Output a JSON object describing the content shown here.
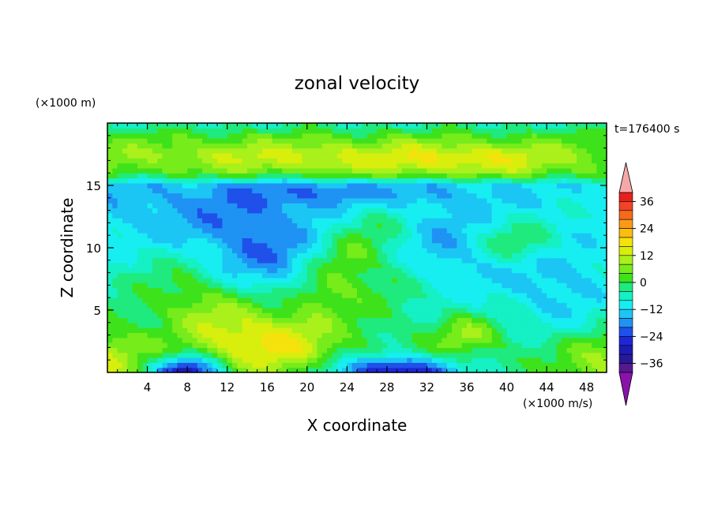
{
  "chart_data": {
    "type": "heatmap",
    "title": "zonal velocity",
    "xlabel": "X coordinate",
    "ylabel": "Z coordinate",
    "x_unit_label": "(×1000 m/s)",
    "y_unit_label": "(×1000 m)",
    "time_label": "t=176400 s",
    "xlim": [
      0,
      50
    ],
    "ylim": [
      0,
      20
    ],
    "x_ticks": [
      4,
      8,
      12,
      16,
      20,
      24,
      28,
      32,
      36,
      40,
      44,
      48
    ],
    "y_ticks": [
      5,
      10,
      15
    ],
    "colorbar": {
      "min": -40,
      "max": 40,
      "tick_values": [
        36,
        24,
        12,
        0,
        -12,
        -24,
        -36
      ],
      "tick_labels": [
        "36",
        "24",
        "12",
        "0",
        "−12",
        "−24",
        "−36"
      ],
      "levels": [
        {
          "from": 36,
          "to": 40,
          "color": "#e8201c"
        },
        {
          "from": 32,
          "to": 36,
          "color": "#f04426"
        },
        {
          "from": 28,
          "to": 32,
          "color": "#f66a1e"
        },
        {
          "from": 24,
          "to": 28,
          "color": "#fa9a16"
        },
        {
          "from": 20,
          "to": 24,
          "color": "#fbbd10"
        },
        {
          "from": 16,
          "to": 20,
          "color": "#f5e20d"
        },
        {
          "from": 12,
          "to": 16,
          "color": "#d8ee0c"
        },
        {
          "from": 8,
          "to": 12,
          "color": "#aaf01a"
        },
        {
          "from": 4,
          "to": 8,
          "color": "#76ec1a"
        },
        {
          "from": 0,
          "to": 4,
          "color": "#3ee21a"
        },
        {
          "from": -4,
          "to": 0,
          "color": "#1fea7e"
        },
        {
          "from": -8,
          "to": -4,
          "color": "#15f0c4"
        },
        {
          "from": -12,
          "to": -8,
          "color": "#17eef2"
        },
        {
          "from": -16,
          "to": -12,
          "color": "#1cc6f4"
        },
        {
          "from": -20,
          "to": -16,
          "color": "#1f92f4"
        },
        {
          "from": -24,
          "to": -20,
          "color": "#2050ea"
        },
        {
          "from": -28,
          "to": -24,
          "color": "#1c28d8"
        },
        {
          "from": -32,
          "to": -28,
          "color": "#1c1cb0"
        },
        {
          "from": -36,
          "to": -32,
          "color": "#28189a"
        },
        {
          "from": -40,
          "to": -36,
          "color": "#56188e"
        }
      ],
      "over_color": "#f6a8a8",
      "under_color": "#8a12aa"
    },
    "features": [
      {
        "x": 24,
        "z": 8.5,
        "amp": 14,
        "sx": 5.5,
        "sz": 2.2,
        "rot": -0.75
      },
      {
        "x": 29,
        "z": 7.5,
        "amp": 6,
        "sx": 2.5,
        "sz": 1.5,
        "rot": -0.6
      },
      {
        "x": 11,
        "z": 5.0,
        "amp": 14,
        "sx": 5.0,
        "sz": 2.5,
        "rot": 0.3
      },
      {
        "x": 16,
        "z": 2.2,
        "amp": 10,
        "sx": 4.0,
        "sz": 1.6,
        "rot": 0.0
      },
      {
        "x": 8,
        "z": 0.0,
        "amp": -30,
        "sx": 2.2,
        "sz": 0.9,
        "rot": 0.0
      },
      {
        "x": 29,
        "z": 0.0,
        "amp": -30,
        "sx": 3.8,
        "sz": 0.9,
        "rot": 0.0
      },
      {
        "x": 36,
        "z": 3.2,
        "amp": 10,
        "sx": 2.0,
        "sz": 1.0,
        "rot": 0.0
      },
      {
        "x": 41,
        "z": 10.5,
        "amp": 11,
        "sx": 3.0,
        "sz": 1.2,
        "rot": 0.0
      },
      {
        "x": 15,
        "z": 9.5,
        "amp": -12,
        "sx": 4.5,
        "sz": 3.0,
        "rot": 0.0
      },
      {
        "x": 33,
        "z": 10.0,
        "amp": -8,
        "sx": 5.0,
        "sz": 2.5,
        "rot": 0.0
      },
      {
        "x": 45,
        "z": 6.5,
        "amp": -8,
        "sx": 4.0,
        "sz": 3.0,
        "rot": 0.0
      },
      {
        "x": 50,
        "z": 0.5,
        "amp": 12,
        "sx": 3.0,
        "sz": 1.5,
        "rot": 0.0
      },
      {
        "x": 0,
        "z": 0.8,
        "amp": 12,
        "sx": 2.5,
        "sz": 2.0,
        "rot": 0.0
      },
      {
        "x": 6,
        "z": 13.0,
        "amp": -6,
        "sx": 7.0,
        "sz": 2.0,
        "rot": 0.0
      },
      {
        "x": 25,
        "z": 14.5,
        "amp": -10,
        "sx": 8.0,
        "sz": 1.0,
        "rot": 0.0
      },
      {
        "x": 20,
        "z": 17.0,
        "amp": 9,
        "sx": 12.0,
        "sz": 1.2,
        "rot": 0.0
      },
      {
        "x": 38,
        "z": 17.0,
        "amp": 8,
        "sx": 6.0,
        "sz": 1.0,
        "rot": 0.0
      }
    ],
    "background_profile": [
      {
        "z": 0,
        "v": -2
      },
      {
        "z": 2,
        "v": 0
      },
      {
        "z": 5,
        "v": -4
      },
      {
        "z": 8,
        "v": -7
      },
      {
        "z": 11,
        "v": -8
      },
      {
        "z": 13,
        "v": -9
      },
      {
        "z": 15,
        "v": -11
      },
      {
        "z": 16,
        "v": 2
      },
      {
        "z": 17.5,
        "v": 5
      },
      {
        "z": 19,
        "v": 1
      },
      {
        "z": 20,
        "v": -5
      }
    ]
  }
}
